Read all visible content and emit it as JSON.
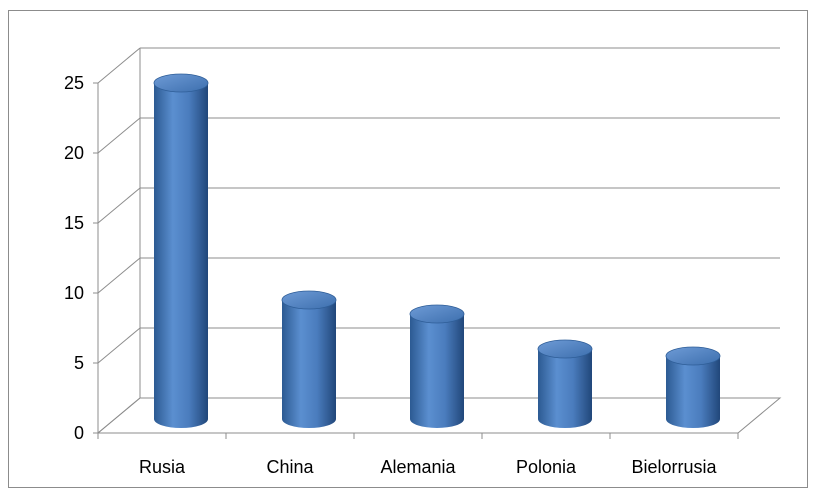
{
  "chart_data": {
    "type": "bar",
    "style": "3d-cylinder",
    "categories": [
      "Rusia",
      "China",
      "Alemania",
      "Polonia",
      "Bielorrusia"
    ],
    "values": [
      24,
      8.5,
      7.5,
      5,
      4.5
    ],
    "title": "",
    "xlabel": "",
    "ylabel": "",
    "ylim": [
      0,
      25
    ],
    "yticks": [
      "0",
      "5",
      "10",
      "15",
      "20",
      "25"
    ],
    "grid": true,
    "legend": "none",
    "bar_color": "#4f81bd"
  }
}
